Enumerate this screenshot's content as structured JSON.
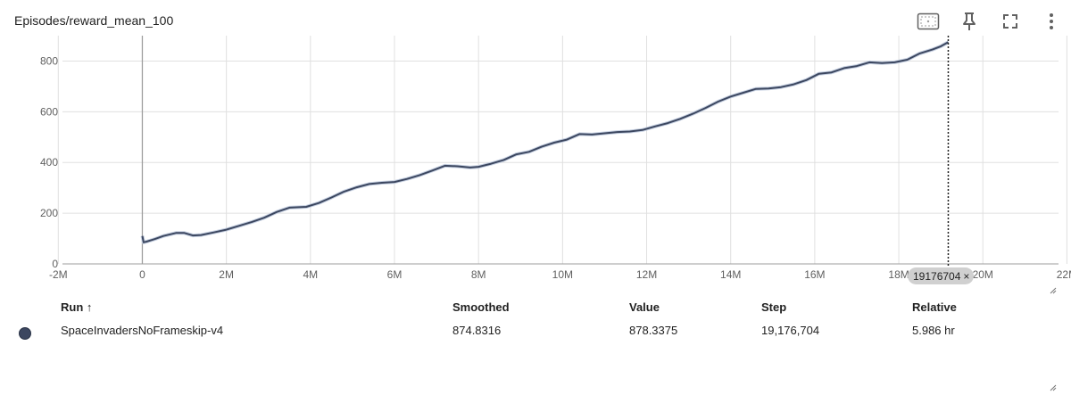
{
  "card": {
    "title": "Episodes/reward_mean_100"
  },
  "toolbar": {
    "icons": [
      "fit-domain-icon",
      "pin-icon",
      "fullscreen-icon",
      "more-vert-icon"
    ]
  },
  "hover": {
    "step_label": "19176704",
    "close_glyph": "×"
  },
  "colors": {
    "series": "#3c4760",
    "raw": "#c5cfe0",
    "grid": "#e0e0e0",
    "axis": "#9e9e9e"
  },
  "chart_data": {
    "type": "line",
    "title": "Episodes/reward_mean_100",
    "xlabel": "",
    "ylabel": "",
    "x_ticks": [
      "-2M",
      "0",
      "2M",
      "4M",
      "6M",
      "8M",
      "10M",
      "12M",
      "14M",
      "16M",
      "18M",
      "20M",
      "22M"
    ],
    "x_tick_values": [
      -2000000,
      0,
      2000000,
      4000000,
      6000000,
      8000000,
      10000000,
      12000000,
      14000000,
      16000000,
      18000000,
      20000000,
      22000000
    ],
    "y_ticks": [
      "0",
      "200",
      "400",
      "600",
      "800"
    ],
    "y_tick_values": [
      0,
      200,
      400,
      600,
      800
    ],
    "xlim": [
      -1900000,
      21800000
    ],
    "ylim": [
      0,
      900
    ],
    "grid": true,
    "series": [
      {
        "name": "SpaceInvadersNoFrameskip-v4",
        "x": [
          0,
          30000,
          100000,
          300000,
          500000,
          800000,
          1000000,
          1200000,
          1400000,
          1700000,
          2000000,
          2300000,
          2600000,
          2900000,
          3200000,
          3500000,
          3900000,
          4200000,
          4500000,
          4800000,
          5100000,
          5400000,
          5700000,
          6000000,
          6300000,
          6600000,
          6900000,
          7200000,
          7500000,
          7800000,
          8000000,
          8300000,
          8600000,
          8900000,
          9200000,
          9500000,
          9800000,
          10100000,
          10400000,
          10700000,
          11000000,
          11300000,
          11600000,
          11900000,
          12200000,
          12500000,
          12800000,
          13100000,
          13400000,
          13700000,
          14000000,
          14300000,
          14600000,
          14900000,
          15200000,
          15500000,
          15800000,
          16100000,
          16400000,
          16700000,
          17000000,
          17300000,
          17600000,
          17900000,
          18200000,
          18500000,
          18800000,
          19000000,
          19176704
        ],
        "values": [
          110,
          85,
          88,
          98,
          110,
          122,
          122,
          112,
          114,
          124,
          135,
          150,
          165,
          182,
          205,
          222,
          225,
          240,
          262,
          285,
          302,
          315,
          320,
          323,
          335,
          350,
          368,
          387,
          385,
          380,
          383,
          395,
          410,
          432,
          442,
          462,
          478,
          490,
          512,
          510,
          515,
          520,
          522,
          528,
          542,
          555,
          572,
          592,
          615,
          640,
          660,
          675,
          690,
          692,
          697,
          708,
          725,
          750,
          755,
          772,
          780,
          795,
          792,
          795,
          805,
          830,
          845,
          858,
          874.8316
        ]
      }
    ],
    "table": {
      "columns": [
        "Run ↑",
        "Smoothed",
        "Value",
        "Step",
        "Relative"
      ],
      "rows": [
        {
          "run": "SpaceInvadersNoFrameskip-v4",
          "smoothed": "874.8316",
          "value": "878.3375",
          "step": "19,176,704",
          "relative": "5.986 hr"
        }
      ]
    }
  }
}
